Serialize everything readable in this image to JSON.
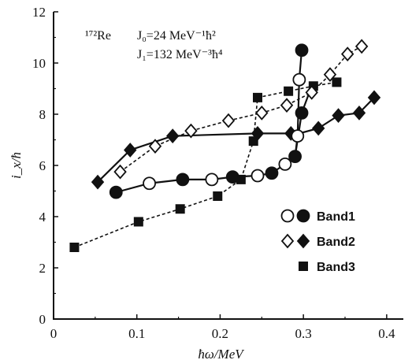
{
  "chart_data": {
    "type": "scatter",
    "xlabel": "ħω/MeV",
    "ylabel": "i_x/ħ",
    "xlim": [
      0,
      0.42
    ],
    "ylim": [
      0,
      12
    ],
    "x_ticks": [
      "0",
      "0.1",
      "0.2",
      "0.3",
      "0.4"
    ],
    "x_tick_values": [
      0,
      0.1,
      0.2,
      0.3,
      0.4
    ],
    "y_ticks": [
      "0",
      "2",
      "4",
      "6",
      "8",
      "10",
      "12"
    ],
    "y_tick_values": [
      0,
      2,
      4,
      6,
      8,
      10,
      12
    ],
    "grid": false,
    "legend_position": "bottom-right",
    "annotation": {
      "nucleus": "¹⁷²Re",
      "j0": "J₀=24 MeV⁻¹ħ²",
      "j1": "J₁=132 MeV⁻³ħ⁴"
    },
    "series": [
      {
        "name": "Band1",
        "marker": "circle",
        "open_x": [
          0.115,
          0.19,
          0.245,
          0.278,
          0.293,
          0.295
        ],
        "open_y": [
          5.3,
          5.45,
          5.6,
          6.05,
          7.15,
          9.35
        ],
        "filled_x": [
          0.075,
          0.155,
          0.215,
          0.262,
          0.29,
          0.298,
          0.298
        ],
        "filled_y": [
          4.95,
          5.45,
          5.55,
          5.7,
          6.35,
          8.05,
          10.5
        ],
        "line_style": "solid",
        "line_x": [
          0.075,
          0.115,
          0.155,
          0.19,
          0.215,
          0.245,
          0.262,
          0.278,
          0.29,
          0.293,
          0.295,
          0.298
        ],
        "line_y": [
          4.95,
          5.3,
          5.45,
          5.45,
          5.55,
          5.6,
          5.7,
          6.05,
          6.35,
          7.15,
          9.35,
          10.5
        ],
        "open_line_style": "solid",
        "open_line_x": [
          0.29,
          0.298,
          0.31
        ],
        "open_line_y": [
          6.35,
          8.05,
          9.1
        ]
      },
      {
        "name": "Band2",
        "marker": "diamond",
        "open_x": [
          0.08,
          0.122,
          0.165,
          0.21,
          0.25,
          0.28,
          0.31,
          0.332,
          0.353,
          0.37
        ],
        "open_y": [
          5.75,
          6.75,
          7.35,
          7.75,
          8.05,
          8.35,
          8.85,
          9.55,
          10.35,
          10.65
        ],
        "open_line_style": "dashed",
        "filled_x": [
          0.053,
          0.092,
          0.143,
          0.245,
          0.285,
          0.318,
          0.342,
          0.367,
          0.385
        ],
        "filled_y": [
          5.35,
          6.6,
          7.15,
          7.25,
          7.25,
          7.45,
          7.95,
          8.05,
          8.65
        ],
        "filled_line_style": "solid",
        "filled_line_x": [
          0.053,
          0.092,
          0.143,
          0.245,
          0.285,
          0.295,
          0.318,
          0.342,
          0.367,
          0.385
        ],
        "filled_line_y": [
          5.35,
          6.6,
          7.15,
          7.25,
          7.25,
          7.25,
          7.45,
          7.95,
          8.05,
          8.65
        ]
      },
      {
        "name": "Band3",
        "marker": "square",
        "x": [
          0.025,
          0.102,
          0.152,
          0.197,
          0.225,
          0.24,
          0.245,
          0.282,
          0.312,
          0.34
        ],
        "y": [
          2.8,
          3.8,
          4.3,
          4.8,
          5.45,
          6.95,
          8.65,
          8.9,
          9.1,
          9.25
        ],
        "line_style": "dashed"
      }
    ],
    "legend": [
      {
        "label": "Band1",
        "open": "circle",
        "filled": "circle"
      },
      {
        "label": "Band2",
        "open": "diamond",
        "filled": "diamond"
      },
      {
        "label": "Band3",
        "filled": "square"
      }
    ]
  }
}
